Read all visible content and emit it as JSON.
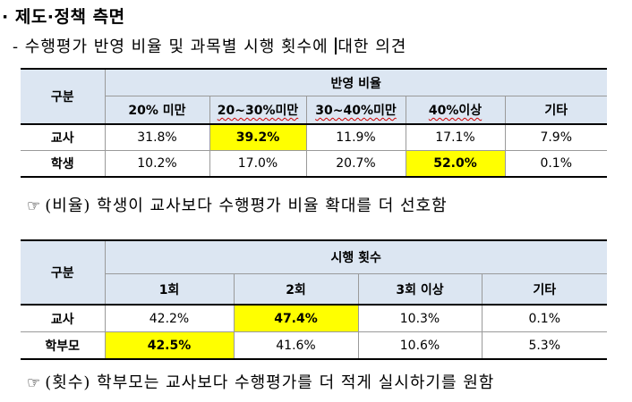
{
  "section_title": "· 제도·정책 측면",
  "subtitle": {
    "before_caret": "- 수행평가 반영 비율 및 과목별 시행 횟수에 ",
    "after_caret": "대한 의견"
  },
  "table1": {
    "row_header": "구분",
    "group_header": "반영 비율",
    "columns": [
      "20% 미만",
      "20~30%미만",
      "30~40%미만",
      "40%이상",
      "기타"
    ],
    "rows": [
      {
        "label": "교사",
        "values": [
          "31.8%",
          "39.2%",
          "11.9%",
          "17.1%",
          "7.9%"
        ]
      },
      {
        "label": "학생",
        "values": [
          "10.2%",
          "17.0%",
          "20.7%",
          "52.0%",
          "0.1%"
        ]
      }
    ]
  },
  "note1": {
    "symbol": "☞",
    "text": "(비율) 학생이 교사보다 수행평가 비율 확대를 더 선호함"
  },
  "table2": {
    "row_header": "구분",
    "group_header": "시행 횟수",
    "columns": [
      "1회",
      "2회",
      "3회 이상",
      "기타"
    ],
    "rows": [
      {
        "label": "교사",
        "values": [
          "42.2%",
          "47.4%",
          "10.3%",
          "0.1%"
        ]
      },
      {
        "label": "학부모",
        "values": [
          "42.5%",
          "41.6%",
          "10.6%",
          "5.3%"
        ]
      }
    ]
  },
  "note2": {
    "symbol": "☞",
    "text": "(횟수) 학부모는 교사보다 수행평가를 더 적게 실시하기를 원함"
  },
  "colors": {
    "header_bg": "#dce6f2",
    "highlight": "#ffff00"
  }
}
